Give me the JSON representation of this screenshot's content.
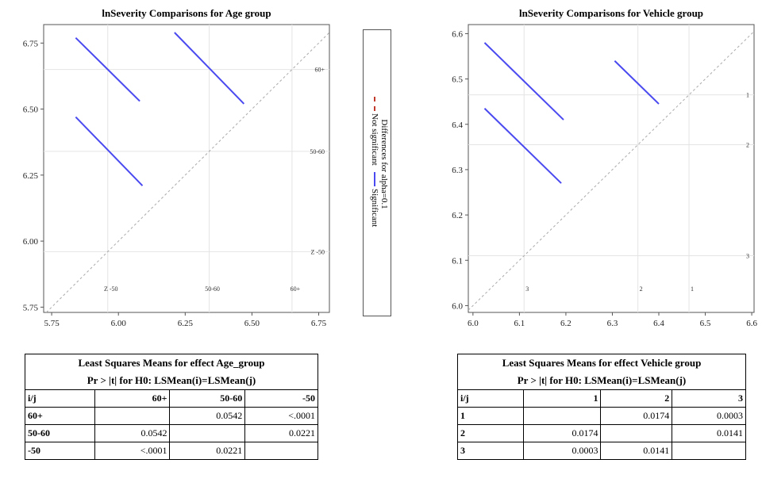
{
  "chart_data": [
    {
      "type": "scatter",
      "title": "lnSeverity Comparisons for Age group",
      "xlim": [
        5.72,
        6.79
      ],
      "ylim": [
        5.73,
        6.82
      ],
      "xticks": [
        "5.75",
        "6.00",
        "6.25",
        "6.50",
        "6.75"
      ],
      "yticks": [
        "5.75",
        "6.00",
        "6.25",
        "6.50",
        "6.75"
      ],
      "levels": [
        {
          "name": "-50",
          "label": "Z -50",
          "x_label": "Z -50",
          "mean": 5.96
        },
        {
          "name": "50-60",
          "label": "50-60",
          "x_label": "50-60",
          "mean": 6.34
        },
        {
          "name": "60+",
          "label": "60+",
          "x_label": "60+",
          "mean": 6.65
        }
      ],
      "segments": [
        {
          "pair": "60+ vs -50",
          "x1": 5.84,
          "y1": 6.77,
          "x2": 6.08,
          "y2": 6.53,
          "significant": true
        },
        {
          "pair": "60+ vs 50-60",
          "x1": 6.21,
          "y1": 6.79,
          "x2": 6.47,
          "y2": 6.52,
          "significant": true
        },
        {
          "pair": "50-60 vs -50",
          "x1": 5.84,
          "y1": 6.47,
          "x2": 6.09,
          "y2": 6.21,
          "significant": true
        }
      ],
      "grid": true
    },
    {
      "type": "scatter",
      "title": "lnSeverity Comparisons for Vehicle group",
      "xlim": [
        5.99,
        6.605
      ],
      "ylim": [
        5.985,
        6.62
      ],
      "xticks": [
        "6.0",
        "6.1",
        "6.2",
        "6.3",
        "6.4",
        "6.5",
        "6.6"
      ],
      "yticks": [
        "6.0",
        "6.1",
        "6.2",
        "6.3",
        "6.4",
        "6.5",
        "6.6"
      ],
      "levels": [
        {
          "name": "3",
          "label": "3",
          "x_label": "3",
          "mean": 6.11
        },
        {
          "name": "2",
          "label": "2",
          "x_label": "2",
          "mean": 6.355
        },
        {
          "name": "1",
          "label": "1",
          "x_label": "1",
          "mean": 6.465
        }
      ],
      "segments": [
        {
          "pair": "1 vs 3",
          "x1": 6.025,
          "y1": 6.58,
          "x2": 6.195,
          "y2": 6.41,
          "significant": true
        },
        {
          "pair": "1 vs 2",
          "x1": 6.305,
          "y1": 6.54,
          "x2": 6.4,
          "y2": 6.445,
          "significant": true
        },
        {
          "pair": "2 vs 3",
          "x1": 6.025,
          "y1": 6.435,
          "x2": 6.19,
          "y2": 6.27,
          "significant": true
        }
      ],
      "grid": true
    }
  ],
  "legend": {
    "title": "Differences for alpha=0.1",
    "items": [
      {
        "label": "Not significant",
        "color": "#c0392b",
        "style": "dashed"
      },
      {
        "label": "Significant",
        "color": "#4a4af0",
        "style": "solid"
      }
    ]
  },
  "tables": [
    {
      "title": "Least Squares Means for effect Age_group",
      "subtitle": "Pr > |t| for H0: LSMean(i)=LSMean(j)",
      "header": [
        "i/j",
        "60+",
        "50-60",
        "-50"
      ],
      "rows": [
        [
          "60+",
          "",
          "0.0542",
          "<.0001"
        ],
        [
          "50-60",
          "0.0542",
          "",
          "0.0221"
        ],
        [
          "-50",
          "<.0001",
          "0.0221",
          ""
        ]
      ]
    },
    {
      "title": "Least Squares Means for effect Vehicle group",
      "subtitle": "Pr > |t| for H0: LSMean(i)=LSMean(j)",
      "header": [
        "i/j",
        "1",
        "2",
        "3"
      ],
      "rows": [
        [
          "1",
          "",
          "0.0174",
          "0.0003"
        ],
        [
          "2",
          "0.0174",
          "",
          "0.0141"
        ],
        [
          "3",
          "0.0003",
          "0.0141",
          ""
        ]
      ]
    }
  ],
  "colors": {
    "significant": "#4a4af0",
    "not_significant": "#c0392b",
    "diagonal": "#aaaaaa",
    "grid": "#e4e4e4"
  }
}
